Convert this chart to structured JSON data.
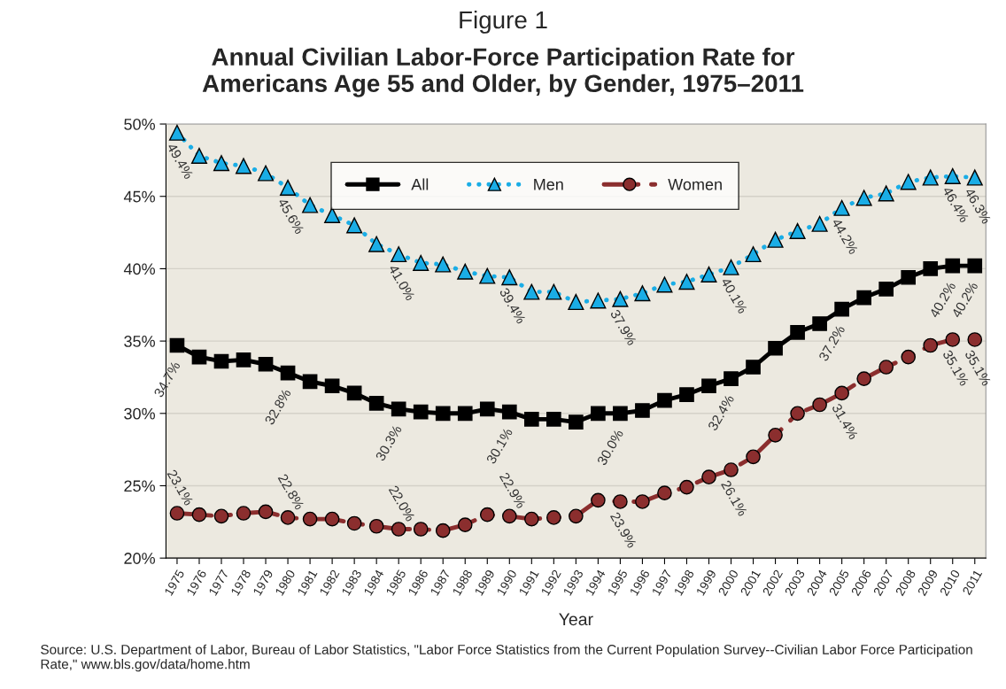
{
  "chart_data": {
    "type": "line",
    "title": "Figure 1",
    "subtitle": "Annual Civilian Labor-Force Participation Rate for\nAmericans Age 55 and Older, by Gender, 1975–2011",
    "xlabel": "Year",
    "categories": [
      "1975",
      "1976",
      "1977",
      "1978",
      "1979",
      "1980",
      "1981",
      "1982",
      "1983",
      "1984",
      "1985",
      "1986",
      "1987",
      "1988",
      "1989",
      "1990",
      "1991",
      "1992",
      "1993",
      "1994",
      "1995",
      "1996",
      "1997",
      "1998",
      "1999",
      "2000",
      "2001",
      "2002",
      "2003",
      "2004",
      "2005",
      "2006",
      "2007",
      "2008",
      "2009",
      "2010",
      "2011"
    ],
    "series": [
      {
        "name": "All",
        "color": "#000000",
        "marker": "square",
        "line_style": "solid",
        "values": [
          34.7,
          33.9,
          33.6,
          33.7,
          33.4,
          32.8,
          32.2,
          31.9,
          31.4,
          30.7,
          30.3,
          30.1,
          30.0,
          30.0,
          30.3,
          30.1,
          29.6,
          29.6,
          29.4,
          30.0,
          30.0,
          30.2,
          30.9,
          31.3,
          31.9,
          32.4,
          33.2,
          34.5,
          35.6,
          36.2,
          37.2,
          38.0,
          38.6,
          39.4,
          40.0,
          40.2,
          40.2
        ],
        "value_labels": [
          "34.7%",
          null,
          null,
          null,
          null,
          "32.8%",
          null,
          null,
          null,
          null,
          "30.3%",
          null,
          null,
          null,
          null,
          "30.1%",
          null,
          null,
          null,
          null,
          "30.0%",
          null,
          null,
          null,
          null,
          "32.4%",
          null,
          null,
          null,
          null,
          "37.2%",
          null,
          null,
          null,
          null,
          "40.2%",
          "40.2%"
        ]
      },
      {
        "name": "Men",
        "color": "#1AADE6",
        "marker": "triangle",
        "line_style": "dotted",
        "values": [
          49.4,
          47.8,
          47.3,
          47.1,
          46.6,
          45.6,
          44.4,
          43.7,
          43.0,
          41.7,
          41.0,
          40.4,
          40.3,
          39.8,
          39.5,
          39.4,
          38.4,
          38.4,
          37.7,
          37.8,
          37.9,
          38.3,
          38.9,
          39.1,
          39.6,
          40.1,
          41.0,
          42.0,
          42.6,
          43.1,
          44.2,
          44.9,
          45.2,
          46.0,
          46.3,
          46.4,
          46.3
        ],
        "value_labels": [
          "49.4%",
          null,
          null,
          null,
          null,
          "45.6%",
          null,
          null,
          null,
          null,
          "41.0%",
          null,
          null,
          null,
          null,
          "39.4%",
          null,
          null,
          null,
          null,
          "37.9%",
          null,
          null,
          null,
          null,
          "40.1%",
          null,
          null,
          null,
          null,
          "44.2%",
          null,
          null,
          null,
          null,
          "46.4%",
          "46.3%"
        ]
      },
      {
        "name": "Women",
        "color": "#8B2E2E",
        "marker": "circle",
        "line_style": "dashed",
        "values": [
          23.1,
          23.0,
          22.9,
          23.1,
          23.2,
          22.8,
          22.7,
          22.7,
          22.4,
          22.2,
          22.0,
          22.0,
          21.9,
          22.3,
          23.0,
          22.9,
          22.7,
          22.8,
          22.9,
          24.0,
          23.9,
          23.9,
          24.5,
          24.9,
          25.6,
          26.1,
          27.0,
          28.5,
          30.0,
          30.6,
          31.4,
          32.4,
          33.2,
          33.9,
          34.7,
          35.1,
          35.1
        ],
        "value_labels": [
          "23.1%",
          null,
          null,
          null,
          null,
          "22.8%",
          null,
          null,
          null,
          null,
          "22.0%",
          null,
          null,
          null,
          null,
          "22.9%",
          null,
          null,
          null,
          null,
          "23.9%",
          null,
          null,
          null,
          null,
          "26.1%",
          null,
          null,
          null,
          null,
          "31.4%",
          null,
          null,
          null,
          null,
          "35.1%",
          "35.1%"
        ]
      }
    ],
    "ylim": [
      20,
      50
    ],
    "yticks": [
      {
        "value": 20,
        "label": "20%"
      },
      {
        "value": 25,
        "label": "25%"
      },
      {
        "value": 30,
        "label": "30%"
      },
      {
        "value": 35,
        "label": "35%"
      },
      {
        "value": 40,
        "label": "40%"
      },
      {
        "value": 45,
        "label": "45%"
      },
      {
        "value": 50,
        "label": "50%"
      }
    ],
    "grid": "y",
    "legend": "top",
    "annotations": [
      "Source: U.S. Department of Labor, Bureau of Labor Statistics, \"Labor Force Statistics from the Current Population Survey--Civilian Labor Force Participation Rate,\" www.bls.gov/data/home.htm"
    ]
  }
}
